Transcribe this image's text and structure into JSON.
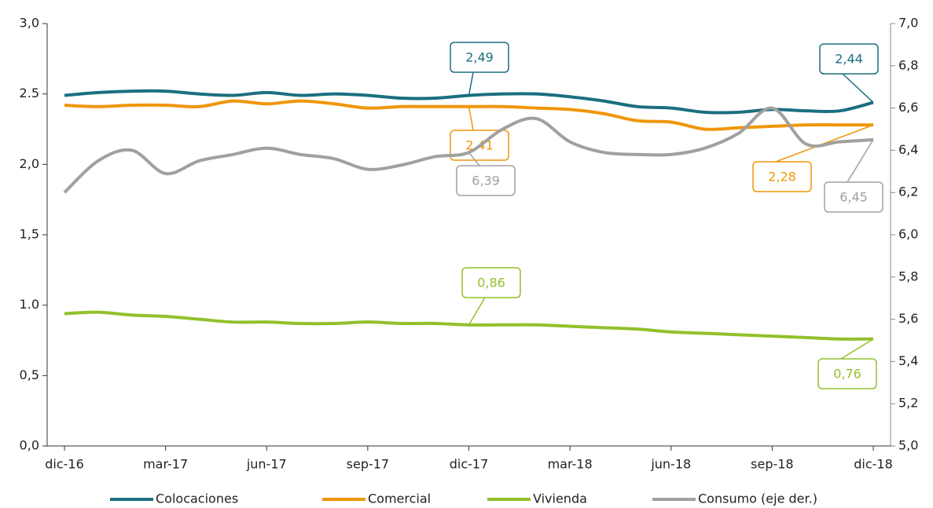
{
  "chart_data": {
    "type": "line",
    "categories": [
      "dic-16",
      null,
      null,
      "mar-17",
      null,
      null,
      "jun-17",
      null,
      null,
      "sep-17",
      null,
      null,
      "dic-17",
      null,
      null,
      "mar-18",
      null,
      null,
      "jun-18",
      null,
      null,
      "sep-18",
      null,
      null,
      "dic-18"
    ],
    "series": [
      {
        "name": "Colocaciones",
        "color": "#1b6f80",
        "values": [
          2.49,
          2.51,
          2.52,
          2.52,
          2.5,
          2.49,
          2.51,
          2.49,
          2.5,
          2.49,
          2.47,
          2.47,
          2.49,
          2.5,
          2.5,
          2.48,
          2.45,
          2.41,
          2.4,
          2.37,
          2.37,
          2.39,
          2.38,
          2.38,
          2.44
        ],
        "value_labels": [
          null,
          null,
          null,
          null,
          null,
          null,
          null,
          null,
          null,
          null,
          null,
          null,
          "2,49",
          null,
          null,
          null,
          null,
          null,
          null,
          null,
          null,
          null,
          null,
          null,
          "2,44"
        ]
      },
      {
        "name": "Comercial",
        "color": "#f0960a",
        "values": [
          2.42,
          2.41,
          2.42,
          2.42,
          2.41,
          2.45,
          2.43,
          2.45,
          2.43,
          2.4,
          2.41,
          2.41,
          2.41,
          2.41,
          2.4,
          2.39,
          2.36,
          2.31,
          2.3,
          2.25,
          2.26,
          2.27,
          2.28,
          2.28,
          2.28
        ],
        "value_labels": [
          null,
          null,
          null,
          null,
          null,
          null,
          null,
          null,
          null,
          null,
          null,
          null,
          "2,41",
          null,
          null,
          null,
          null,
          null,
          null,
          null,
          null,
          null,
          null,
          null,
          "2,28"
        ]
      },
      {
        "name": "Vivienda",
        "color": "#93c02c",
        "values": [
          0.94,
          0.95,
          0.93,
          0.92,
          0.9,
          0.88,
          0.88,
          0.87,
          0.87,
          0.88,
          0.87,
          0.87,
          0.86,
          0.86,
          0.86,
          0.85,
          0.84,
          0.83,
          0.81,
          0.8,
          0.79,
          0.78,
          0.77,
          0.76,
          0.76
        ],
        "value_labels": [
          null,
          null,
          null,
          null,
          null,
          null,
          null,
          null,
          null,
          null,
          null,
          null,
          "0,86",
          null,
          null,
          null,
          null,
          null,
          null,
          null,
          null,
          null,
          null,
          null,
          "0,76"
        ]
      },
      {
        "name": "Consumo (eje der.)",
        "color": "#a0a0a0",
        "axis": "y2",
        "values": [
          6.2,
          6.35,
          6.4,
          6.29,
          6.35,
          6.38,
          6.41,
          6.38,
          6.36,
          6.31,
          6.33,
          6.37,
          6.39,
          6.5,
          6.55,
          6.44,
          6.39,
          6.38,
          6.38,
          6.41,
          6.48,
          6.6,
          6.43,
          6.44,
          6.45
        ],
        "value_labels": [
          null,
          null,
          null,
          null,
          null,
          null,
          null,
          null,
          null,
          null,
          null,
          null,
          "6,39",
          null,
          null,
          null,
          null,
          null,
          null,
          null,
          null,
          null,
          null,
          null,
          "6,45"
        ]
      }
    ],
    "ylim": [
      0,
      3
    ],
    "yticks": [
      {
        "value": 0,
        "label": "0,0"
      },
      {
        "value": 0.5,
        "label": "0,5"
      },
      {
        "value": 1,
        "label": "1.0"
      },
      {
        "value": 1.5,
        "label": "1,5"
      },
      {
        "value": 2,
        "label": "2,0"
      },
      {
        "value": 2.5,
        "label": "2.5"
      },
      {
        "value": 3,
        "label": "3,0"
      }
    ],
    "y2lim": [
      5,
      7
    ],
    "y2ticks": [
      {
        "value": 5,
        "label": "5,0"
      },
      {
        "value": 5.2,
        "label": "5,2"
      },
      {
        "value": 5.4,
        "label": "5,4"
      },
      {
        "value": 5.6,
        "label": "5,6"
      },
      {
        "value": 5.8,
        "label": "5,8"
      },
      {
        "value": 6,
        "label": "6,0"
      },
      {
        "value": 6.2,
        "label": "6,2"
      },
      {
        "value": 6.4,
        "label": "6,4"
      },
      {
        "value": 6.6,
        "label": "6,6"
      },
      {
        "value": 6.8,
        "label": "6,8"
      },
      {
        "value": 7,
        "label": "7,0"
      }
    ],
    "legend": "bottom"
  }
}
